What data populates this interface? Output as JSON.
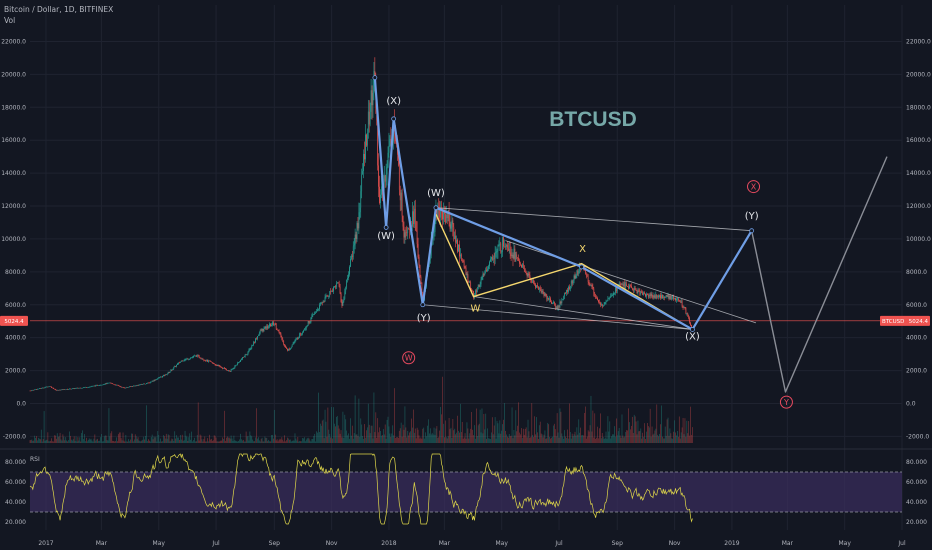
{
  "header": {
    "symbol_line": "Bitcoin / Dollar, 1D, BITFINEX",
    "vol_label": "Vol"
  },
  "rsi_label": "RSI",
  "chart_data": {
    "type": "line",
    "title": "BTCUSD",
    "price_axis": {
      "ylim": [
        -2400,
        23000
      ],
      "ticks": [
        -2000,
        0,
        2000,
        4000,
        6000,
        8000,
        10000,
        12000,
        14000,
        16000,
        18000,
        20000,
        22000
      ],
      "tick_labels": [
        "-2000.0",
        "0.0",
        "2000.0",
        "4000.0",
        "6000.0",
        "8000.0",
        "10000.0",
        "12000.0",
        "14000.0",
        "16000.0",
        "18000.0",
        "20000.0",
        "22000.0"
      ]
    },
    "rsi_axis": {
      "ylim": [
        12,
        90
      ],
      "ticks": [
        20,
        40,
        60,
        80
      ],
      "tick_labels": [
        "20.000",
        "40.000",
        "60.000",
        "80.000"
      ],
      "band": [
        30,
        70
      ]
    },
    "x_axis": {
      "start": "2016-12-15",
      "end": "2019-07-01",
      "tick_labels": [
        {
          "date": "2017-01-01",
          "label": "2017"
        },
        {
          "date": "2017-03-01",
          "label": "Mar"
        },
        {
          "date": "2017-05-01",
          "label": "May"
        },
        {
          "date": "2017-07-01",
          "label": "Jul"
        },
        {
          "date": "2017-09-01",
          "label": "Sep"
        },
        {
          "date": "2017-11-01",
          "label": "Nov"
        },
        {
          "date": "2018-01-01",
          "label": "2018"
        },
        {
          "date": "2018-03-01",
          "label": "Mar"
        },
        {
          "date": "2018-05-01",
          "label": "May"
        },
        {
          "date": "2018-07-01",
          "label": "Jul"
        },
        {
          "date": "2018-09-01",
          "label": "Sep"
        },
        {
          "date": "2018-11-01",
          "label": "Nov"
        },
        {
          "date": "2019-01-01",
          "label": "2019"
        },
        {
          "date": "2019-03-01",
          "label": "Mar"
        },
        {
          "date": "2019-05-01",
          "label": "May"
        },
        {
          "date": "2019-07-01",
          "label": "Jul"
        }
      ]
    },
    "current_price": {
      "value": 5024.4,
      "label": "5024.4",
      "tag": "BTCUSD"
    },
    "price_path": [
      {
        "date": "2016-12-15",
        "value": 780
      },
      {
        "date": "2017-01-05",
        "value": 1050
      },
      {
        "date": "2017-01-12",
        "value": 800
      },
      {
        "date": "2017-02-15",
        "value": 1000
      },
      {
        "date": "2017-03-10",
        "value": 1250
      },
      {
        "date": "2017-03-25",
        "value": 950
      },
      {
        "date": "2017-04-20",
        "value": 1250
      },
      {
        "date": "2017-05-10",
        "value": 1800
      },
      {
        "date": "2017-05-25",
        "value": 2600
      },
      {
        "date": "2017-06-10",
        "value": 2900
      },
      {
        "date": "2017-06-25",
        "value": 2500
      },
      {
        "date": "2017-07-16",
        "value": 1950
      },
      {
        "date": "2017-08-05",
        "value": 3200
      },
      {
        "date": "2017-08-17",
        "value": 4400
      },
      {
        "date": "2017-09-01",
        "value": 4900
      },
      {
        "date": "2017-09-15",
        "value": 3200
      },
      {
        "date": "2017-10-01",
        "value": 4400
      },
      {
        "date": "2017-10-20",
        "value": 6000
      },
      {
        "date": "2017-11-08",
        "value": 7400
      },
      {
        "date": "2017-11-12",
        "value": 5900
      },
      {
        "date": "2017-11-29",
        "value": 11000
      },
      {
        "date": "2017-12-07",
        "value": 16000
      },
      {
        "date": "2017-12-17",
        "value": 19800
      },
      {
        "date": "2017-12-22",
        "value": 12000
      },
      {
        "date": "2018-01-06",
        "value": 17100
      },
      {
        "date": "2018-01-17",
        "value": 10500
      },
      {
        "date": "2018-01-28",
        "value": 11500
      },
      {
        "date": "2018-02-06",
        "value": 6000
      },
      {
        "date": "2018-02-20",
        "value": 11700
      },
      {
        "date": "2018-03-05",
        "value": 11400
      },
      {
        "date": "2018-04-01",
        "value": 6500
      },
      {
        "date": "2018-04-20",
        "value": 8800
      },
      {
        "date": "2018-05-05",
        "value": 9900
      },
      {
        "date": "2018-06-01",
        "value": 7500
      },
      {
        "date": "2018-06-29",
        "value": 5800
      },
      {
        "date": "2018-07-25",
        "value": 8400
      },
      {
        "date": "2018-08-14",
        "value": 5900
      },
      {
        "date": "2018-09-05",
        "value": 7300
      },
      {
        "date": "2018-10-01",
        "value": 6600
      },
      {
        "date": "2018-11-05",
        "value": 6400
      },
      {
        "date": "2018-11-14",
        "value": 5500
      },
      {
        "date": "2018-11-20",
        "value": 4500
      }
    ],
    "wave_labels": [
      {
        "text": "(W)",
        "date": "2017-12-29",
        "value": 10000
      },
      {
        "text": "(X)",
        "date": "2018-01-06",
        "value": 18200
      },
      {
        "text": "(W)",
        "date": "2018-02-20",
        "value": 12600
      },
      {
        "text": "(Y)",
        "date": "2018-02-07",
        "value": 5000
      },
      {
        "text": "W",
        "date": "2018-04-03",
        "value": 5600
      },
      {
        "text": "X",
        "date": "2018-07-26",
        "value": 9200
      },
      {
        "text": "(X)",
        "date": "2018-11-20",
        "value": 3900
      },
      {
        "text": "(Y)",
        "date": "2019-01-22",
        "value": 11200
      },
      {
        "text": "W",
        "date": "2018-01-22",
        "value": 2600,
        "circled": true
      },
      {
        "text": "X",
        "date": "2019-01-24",
        "value": 13000,
        "circled": true
      },
      {
        "text": "Y",
        "date": "2019-02-28",
        "value": -100,
        "circled": true
      }
    ],
    "blue_path": [
      {
        "date": "2017-12-17",
        "value": 19800
      },
      {
        "date": "2017-12-29",
        "value": 10700
      },
      {
        "date": "2018-01-06",
        "value": 17300
      },
      {
        "date": "2018-02-06",
        "value": 6000
      },
      {
        "date": "2018-02-20",
        "value": 11900
      },
      {
        "date": "2018-07-25",
        "value": 8300
      },
      {
        "date": "2018-11-20",
        "value": 4500
      },
      {
        "date": "2019-01-22",
        "value": 10500
      }
    ],
    "yellow_path": [
      {
        "date": "2018-02-20",
        "value": 11500
      },
      {
        "date": "2018-04-01",
        "value": 6500
      },
      {
        "date": "2018-07-25",
        "value": 8500
      },
      {
        "date": "2018-11-20",
        "value": 4500
      }
    ],
    "grey_projection": [
      {
        "date": "2019-01-22",
        "value": 10500
      },
      {
        "date": "2019-02-27",
        "value": 700
      },
      {
        "date": "2019-06-15",
        "value": 15000
      }
    ],
    "channel_lines": [
      [
        {
          "date": "2018-02-20",
          "value": 11900
        },
        {
          "date": "2019-01-22",
          "value": 10500
        }
      ],
      [
        {
          "date": "2018-02-06",
          "value": 6000
        },
        {
          "date": "2018-11-20",
          "value": 4500
        }
      ],
      [
        {
          "date": "2018-05-05",
          "value": 9900
        },
        {
          "date": "2018-12-15",
          "value": 5700
        }
      ],
      [
        {
          "date": "2018-04-01",
          "value": 6500
        },
        {
          "date": "2018-11-20",
          "value": 4500
        }
      ]
    ],
    "grid": true
  },
  "colors": {
    "background": "#131722",
    "candle_up": "#26a69a",
    "candle_down": "#ef5350",
    "wave_blue": "#6f9ee6",
    "wave_yellow": "#f5d76e",
    "projection": "#8a8d96",
    "title": "#76a8a8",
    "rsi_line": "#e0d84a",
    "rsi_band": "#3b2d5e",
    "price_line": "#ef5350"
  }
}
